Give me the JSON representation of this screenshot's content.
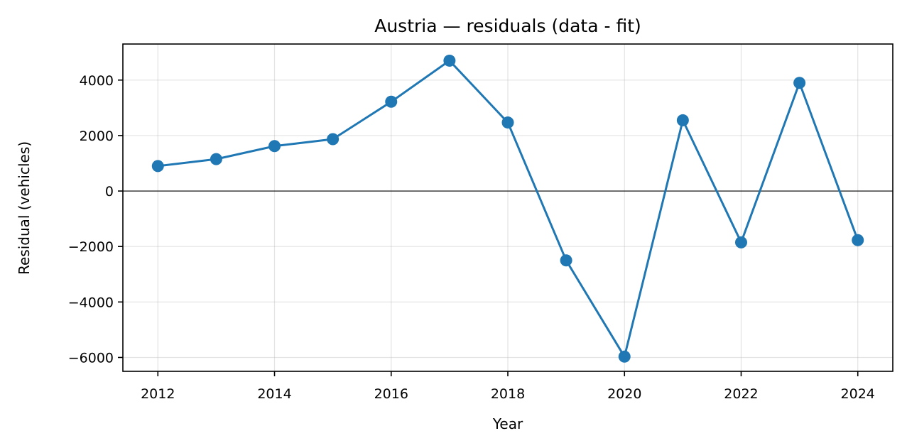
{
  "chart_data": {
    "type": "line",
    "title": "Austria — residuals (data - fit)",
    "xlabel": "Year",
    "ylabel": "Residual (vehicles)",
    "xlim": [
      2011.4,
      2024.6
    ],
    "ylim": [
      -6500,
      5300
    ],
    "xticks": [
      2012,
      2014,
      2016,
      2018,
      2020,
      2022,
      2024
    ],
    "yticks": [
      -6000,
      -4000,
      -2000,
      0,
      2000,
      4000
    ],
    "ytick_labels": [
      "−6000",
      "−4000",
      "−2000",
      "0",
      "2000",
      "4000"
    ],
    "grid": true,
    "reference_line_y": 0,
    "series": [
      {
        "color": "#1f77b4",
        "marker": "circle",
        "x": [
          2012,
          2013,
          2014,
          2015,
          2016,
          2017,
          2018,
          2019,
          2020,
          2021,
          2022,
          2023,
          2024
        ],
        "y": [
          900,
          1150,
          1620,
          1870,
          3220,
          4700,
          2470,
          -2500,
          -5970,
          2550,
          -1850,
          3900,
          -1770
        ]
      }
    ]
  }
}
